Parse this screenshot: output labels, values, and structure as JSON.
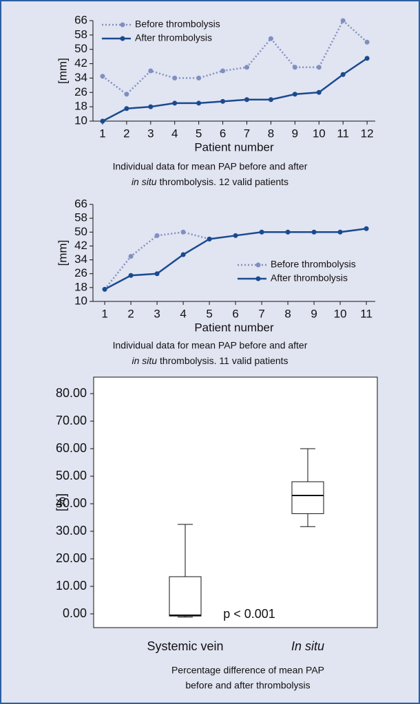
{
  "chart_data": [
    {
      "type": "line",
      "x": [
        1,
        2,
        3,
        4,
        5,
        6,
        7,
        8,
        9,
        10,
        11,
        12
      ],
      "xlim": [
        0.6,
        12.34
      ],
      "xticks": [
        1,
        2,
        3,
        4,
        5,
        6,
        7,
        8,
        9,
        10,
        11,
        12
      ],
      "ylim": [
        10,
        66
      ],
      "yticks": [
        10,
        18,
        26,
        34,
        42,
        50,
        58,
        66
      ],
      "xlabel": "Patient number",
      "ylabel": "[mm]",
      "legend": "top-left",
      "series": [
        {
          "name": "Before thrombolysis",
          "color": "#7f8fc0",
          "dash": "dotted",
          "values": [
            35,
            25,
            38,
            34,
            34,
            38,
            40,
            56,
            40,
            40,
            66,
            54
          ]
        },
        {
          "name": "After thrombolysis",
          "color": "#1a4a90",
          "dash": "solid",
          "values": [
            10,
            17,
            18,
            20,
            20,
            21,
            22,
            22,
            25,
            26,
            36,
            45
          ]
        }
      ],
      "caption_line1": "Individual data for mean PAP before and after",
      "caption_italic": "in situ",
      "caption_line2": "thrombolysis. 12 valid patients"
    },
    {
      "type": "line",
      "x": [
        1,
        2,
        3,
        4,
        5,
        6,
        7,
        8,
        9,
        10,
        11
      ],
      "xlim": [
        0.55,
        11.34
      ],
      "xticks": [
        1,
        2,
        3,
        4,
        5,
        6,
        7,
        8,
        9,
        10,
        11
      ],
      "ylim": [
        10,
        66
      ],
      "yticks": [
        10,
        18,
        26,
        34,
        42,
        50,
        58,
        66
      ],
      "xlabel": "Patient number",
      "ylabel": "[mm]",
      "legend": "right",
      "series": [
        {
          "name": "Before thrombolysis",
          "color": "#7f8fc0",
          "dash": "dotted",
          "values": [
            17,
            36,
            48,
            50,
            46,
            null,
            null,
            null,
            null,
            null,
            null
          ]
        },
        {
          "name": "After thrombolysis",
          "color": "#1a4a90",
          "dash": "solid",
          "values": [
            17,
            25,
            26,
            37,
            46,
            48,
            50,
            50,
            50,
            50,
            52
          ]
        }
      ],
      "caption_line1": "Individual data for mean PAP before and after",
      "caption_italic": "in situ",
      "caption_line2": "thrombolysis. 11 valid patients"
    },
    {
      "type": "box",
      "categories": [
        "Systemic vein",
        "In situ"
      ],
      "ylim": [
        -5,
        86
      ],
      "yticks": [
        {
          "value": 0,
          "label": "0.00"
        },
        {
          "value": 10,
          "label": "10.00"
        },
        {
          "value": 20,
          "label": "20.00"
        },
        {
          "value": 30,
          "label": "30.00"
        },
        {
          "value": 40,
          "label": "40.00"
        },
        {
          "value": 50,
          "label": "50.00"
        },
        {
          "value": 60,
          "label": "60.00"
        },
        {
          "value": 70,
          "label": "70.00"
        },
        {
          "value": 80,
          "label": "80.00"
        }
      ],
      "ylabel": "[%]",
      "boxes": [
        {
          "min": -1.2,
          "q1": -0.8,
          "median": -0.5,
          "q3": 13.5,
          "max": 32.5
        },
        {
          "min": 31.7,
          "q1": 36.4,
          "median": 43,
          "q3": 48,
          "max": 60
        }
      ],
      "annotation": "p < 0.001",
      "title": [
        "Percentage difference of mean PAP",
        "before and after thrombolysis"
      ]
    }
  ]
}
